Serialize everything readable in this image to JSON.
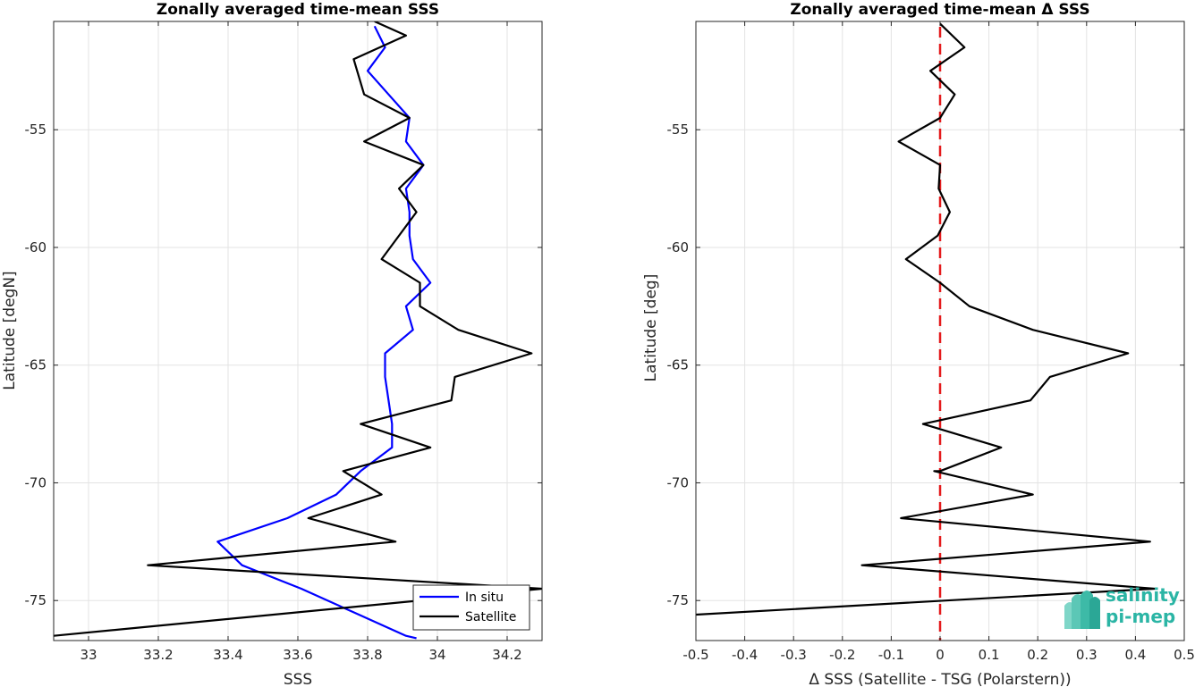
{
  "colors": {
    "insitu": "#0000ff",
    "satellite": "#000000",
    "zero_line": "#e41a1c",
    "grid": "#e3e3e3",
    "axis": "#262626",
    "logo": "#2bb5a5"
  },
  "logo": {
    "line1": "salinity",
    "line2": "pi-mep"
  },
  "chart_data": [
    {
      "type": "line",
      "orientation": "vertical",
      "title": "Zonally averaged time-mean SSS",
      "xlabel": "SSS",
      "ylabel": "Latitude [degN]",
      "xlim": [
        32.9,
        34.3
      ],
      "ylim": [
        -76.7,
        -50.4
      ],
      "xticks": [
        33,
        33.2,
        33.4,
        33.6,
        33.8,
        34,
        34.2
      ],
      "xtick_labels": [
        "33",
        "33.2",
        "33.4",
        "33.6",
        "33.8",
        "34",
        "34.2"
      ],
      "yticks": [
        -55,
        -60,
        -65,
        -70,
        -75
      ],
      "ytick_labels": [
        "-55",
        "-60",
        "-65",
        "-70",
        "-75"
      ],
      "grid": true,
      "legend": {
        "placement": "bottom-right",
        "entries": [
          "In situ",
          "Satellite"
        ]
      },
      "series": [
        {
          "name": "In situ",
          "points": [
            [
              33.82,
              -50.6
            ],
            [
              33.85,
              -51.5
            ],
            [
              33.8,
              -52.5
            ],
            [
              33.86,
              -53.5
            ],
            [
              33.92,
              -54.5
            ],
            [
              33.91,
              -55.5
            ],
            [
              33.96,
              -56.5
            ],
            [
              33.91,
              -57.5
            ],
            [
              33.92,
              -58.5
            ],
            [
              33.92,
              -59.5
            ],
            [
              33.93,
              -60.5
            ],
            [
              33.98,
              -61.5
            ],
            [
              33.91,
              -62.5
            ],
            [
              33.93,
              -63.5
            ],
            [
              33.85,
              -64.5
            ],
            [
              33.85,
              -65.5
            ],
            [
              33.86,
              -66.5
            ],
            [
              33.87,
              -67.5
            ],
            [
              33.87,
              -68.5
            ],
            [
              33.78,
              -69.5
            ],
            [
              33.71,
              -70.5
            ],
            [
              33.57,
              -71.5
            ],
            [
              33.37,
              -72.5
            ],
            [
              33.44,
              -73.5
            ],
            [
              33.61,
              -74.5
            ],
            [
              33.76,
              -75.5
            ],
            [
              33.91,
              -76.5
            ],
            [
              33.94,
              -76.6
            ]
          ]
        },
        {
          "name": "Satellite",
          "points": [
            [
              33.82,
              -50.4
            ],
            [
              33.91,
              -51.0
            ],
            [
              33.76,
              -52.0
            ],
            [
              33.79,
              -53.5
            ],
            [
              33.92,
              -54.5
            ],
            [
              33.79,
              -55.5
            ],
            [
              33.96,
              -56.5
            ],
            [
              33.89,
              -57.5
            ],
            [
              33.94,
              -58.5
            ],
            [
              33.84,
              -60.5
            ],
            [
              33.95,
              -61.5
            ],
            [
              33.95,
              -62.5
            ],
            [
              34.06,
              -63.5
            ],
            [
              34.27,
              -64.5
            ],
            [
              34.05,
              -65.5
            ],
            [
              34.04,
              -66.5
            ],
            [
              33.78,
              -67.5
            ],
            [
              33.98,
              -68.5
            ],
            [
              33.73,
              -69.5
            ],
            [
              33.84,
              -70.5
            ],
            [
              33.63,
              -71.5
            ],
            [
              33.88,
              -72.5
            ],
            [
              33.17,
              -73.5
            ],
            [
              34.3,
              -74.5
            ],
            [
              32.9,
              -76.5
            ]
          ]
        }
      ]
    },
    {
      "type": "line",
      "orientation": "vertical",
      "title": "Zonally averaged time-mean Δ SSS",
      "xlabel": "Δ SSS (Satellite - TSG (Polarstern))",
      "ylabel": "Latitude [deg]",
      "xlim": [
        -0.5,
        0.5
      ],
      "ylim": [
        -76.7,
        -50.4
      ],
      "xticks": [
        -0.5,
        -0.4,
        -0.3,
        -0.2,
        -0.1,
        0,
        0.1,
        0.2,
        0.3,
        0.4,
        0.5
      ],
      "xtick_labels": [
        "-0.5",
        "-0.4",
        "-0.3",
        "-0.2",
        "-0.1",
        "0",
        "0.1",
        "0.2",
        "0.3",
        "0.4",
        "0.5"
      ],
      "yticks": [
        -55,
        -60,
        -65,
        -70,
        -75
      ],
      "ytick_labels": [
        "-55",
        "-60",
        "-65",
        "-70",
        "-75"
      ],
      "grid": true,
      "reference_line": {
        "x": 0,
        "style": "dashed"
      },
      "series": [
        {
          "points": [
            [
              0.0,
              -50.5
            ],
            [
              0.05,
              -51.5
            ],
            [
              -0.02,
              -52.5
            ],
            [
              0.03,
              -53.5
            ],
            [
              0.0,
              -54.5
            ],
            [
              -0.085,
              -55.5
            ],
            [
              0.0,
              -56.5
            ],
            [
              -0.003,
              -57.5
            ],
            [
              0.02,
              -58.5
            ],
            [
              -0.005,
              -59.5
            ],
            [
              -0.07,
              -60.5
            ],
            [
              0.0,
              -61.5
            ],
            [
              0.06,
              -62.5
            ],
            [
              0.19,
              -63.5
            ],
            [
              0.385,
              -64.5
            ],
            [
              0.225,
              -65.5
            ],
            [
              0.185,
              -66.5
            ],
            [
              -0.035,
              -67.5
            ],
            [
              0.125,
              -68.5
            ],
            [
              0.0,
              -69.5
            ],
            [
              -0.012,
              -69.5
            ],
            [
              0.19,
              -70.5
            ],
            [
              -0.08,
              -71.5
            ],
            [
              0.43,
              -72.5
            ],
            [
              -0.16,
              -73.5
            ],
            [
              0.44,
              -74.5
            ],
            [
              -0.5,
              -75.6
            ]
          ]
        }
      ]
    }
  ]
}
